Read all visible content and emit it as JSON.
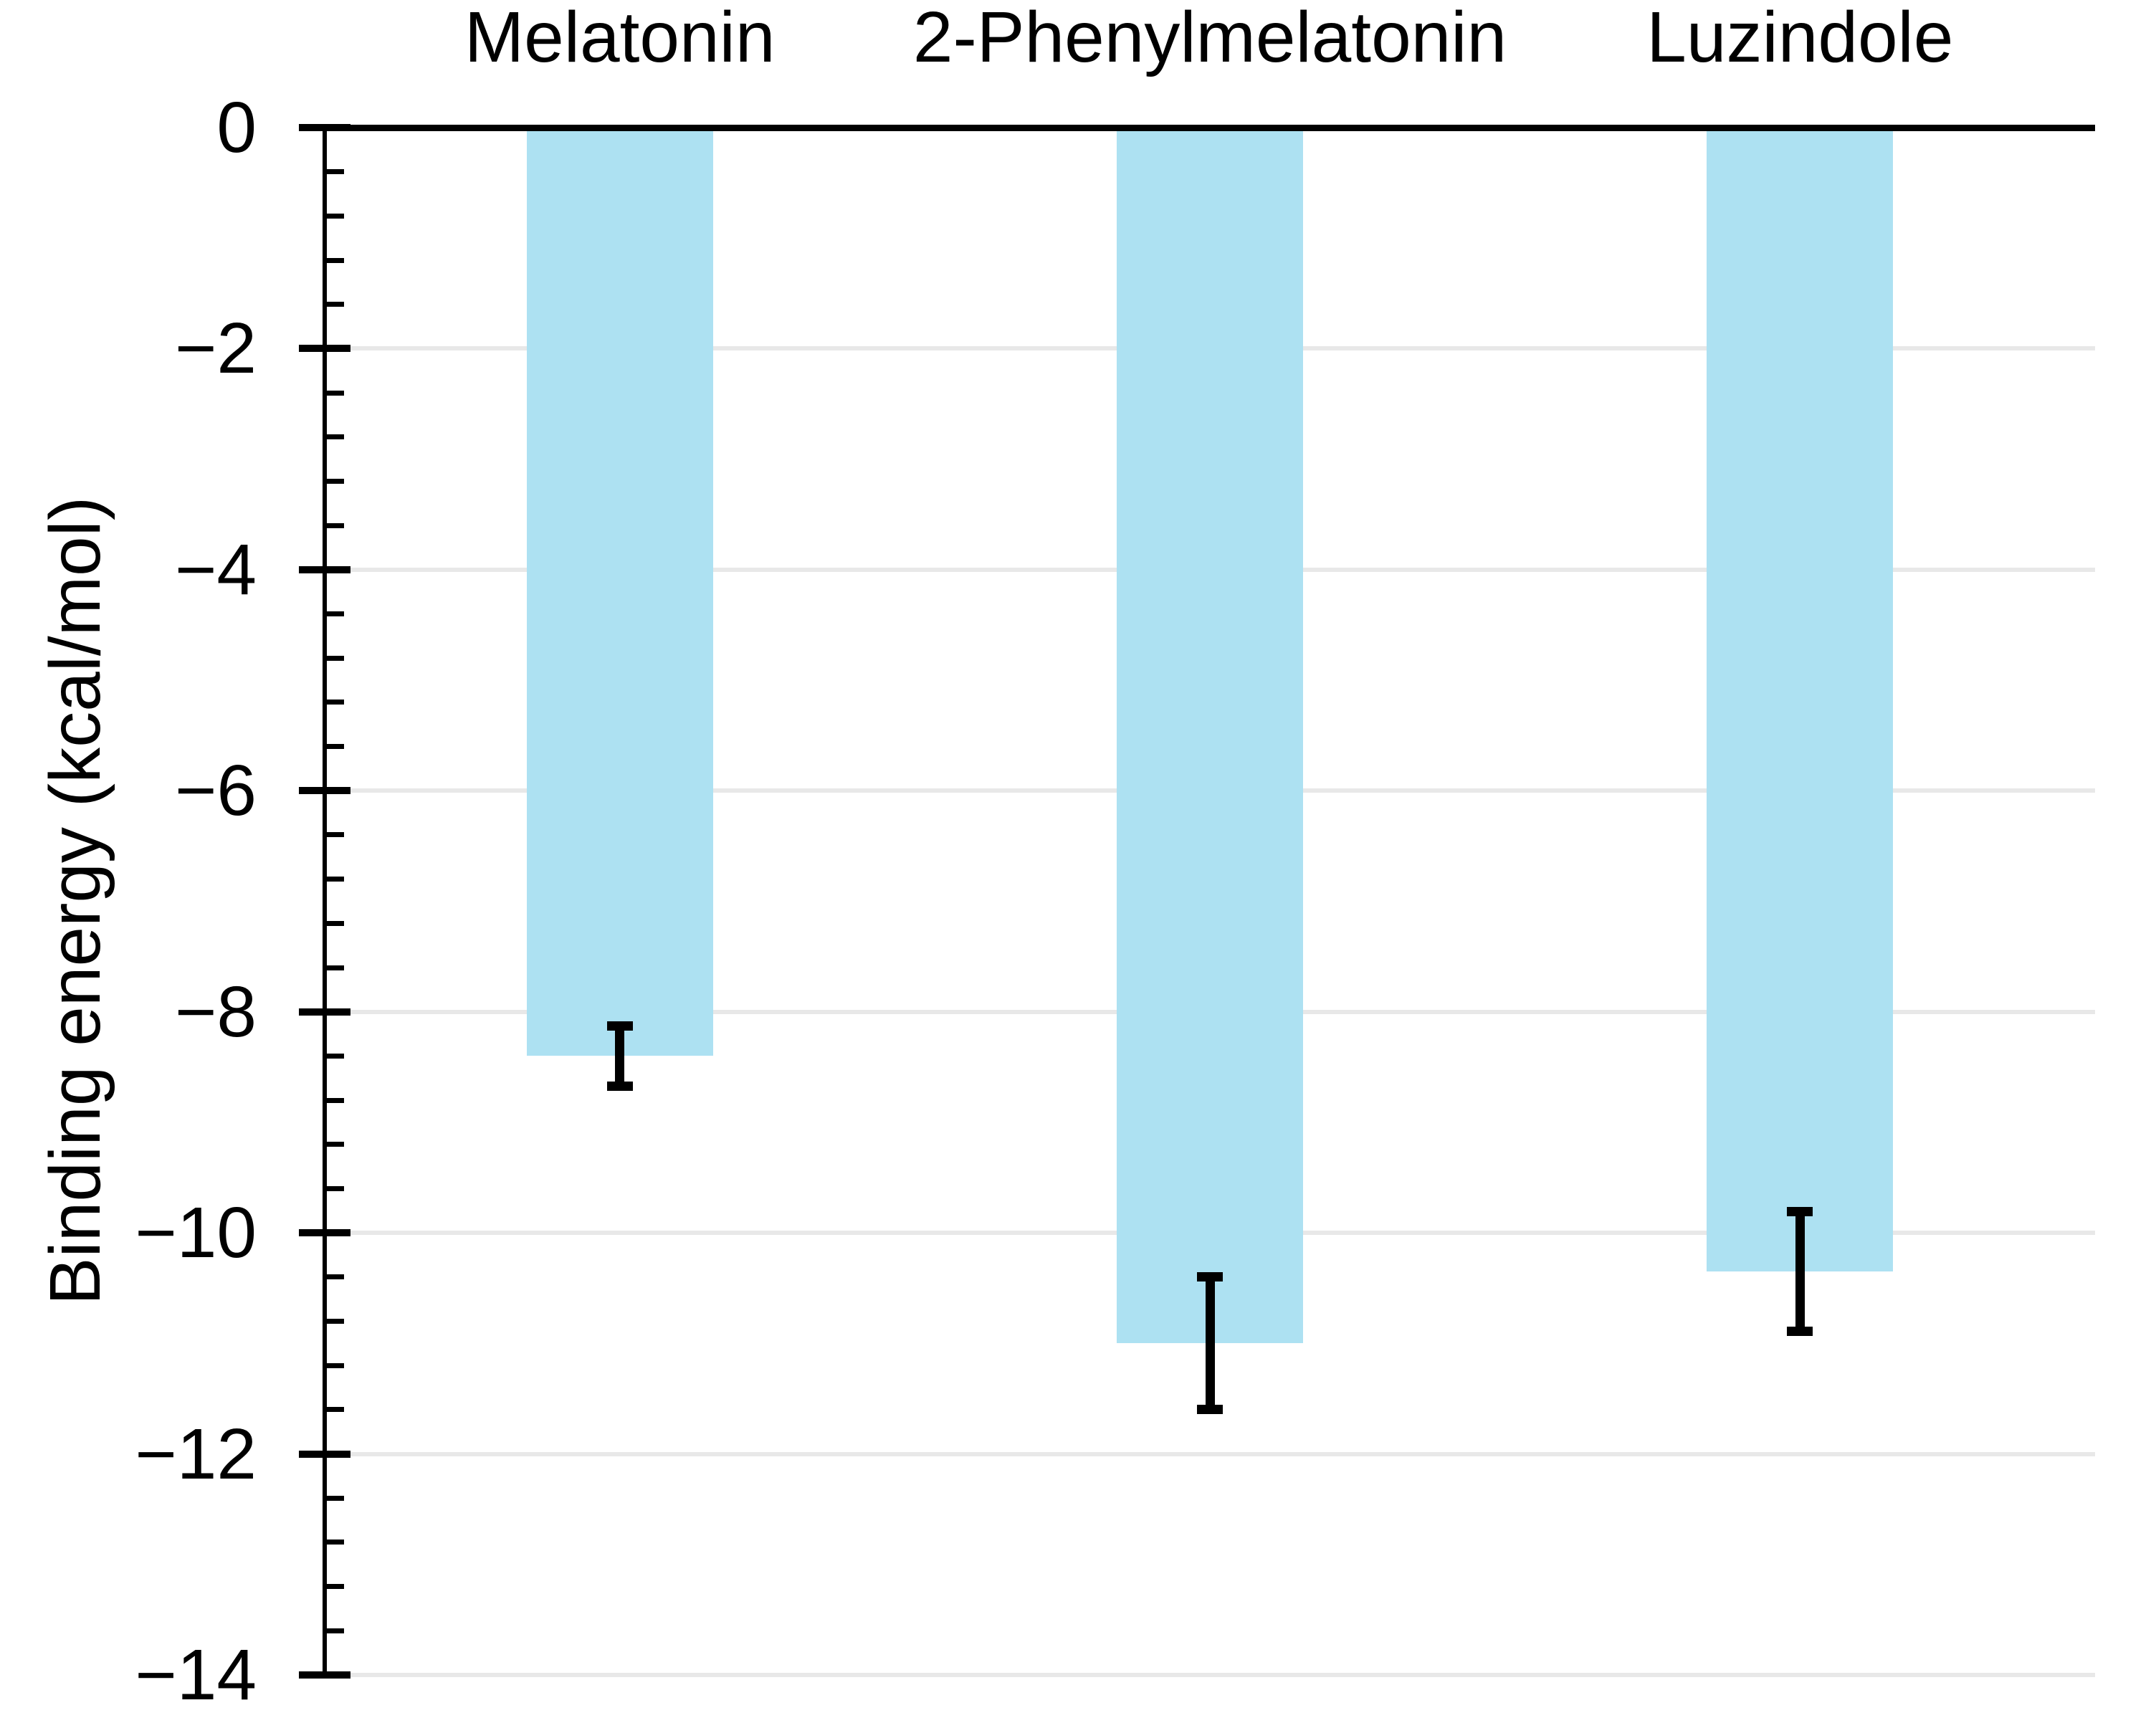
{
  "figure": {
    "background_color": "#ffffff",
    "text_color": "#000000"
  },
  "chart_data": {
    "type": "bar",
    "title": "",
    "categories": [
      "Melatonin",
      "2-Phenylmelatonin",
      "Luzindole"
    ],
    "values": [
      -8.4,
      -11.0,
      -10.35
    ],
    "error_bars": [
      0.27,
      0.6,
      0.54
    ],
    "xlabel": "",
    "ylabel": "Binding energy (kcal/mol)",
    "ylim": [
      -14,
      0
    ],
    "yticks": [
      0,
      -2,
      -4,
      -6,
      -8,
      -10,
      -12,
      -14
    ],
    "ytick_labels": [
      "0",
      "−2",
      "−4",
      "−6",
      "−8",
      "−10",
      "−12",
      "−14"
    ],
    "minor_tick_interval": 0.4,
    "grid": "horizontal-major",
    "legend_position": "none",
    "category_label_position": "top",
    "bar_color": "#ADE1F2",
    "error_color": "#000000",
    "axis_color": "#000000",
    "grid_color": "#E8E8E8"
  }
}
